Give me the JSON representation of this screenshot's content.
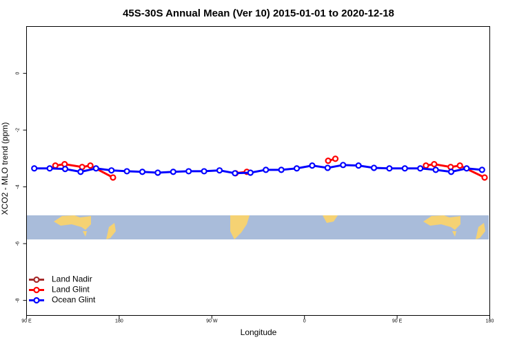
{
  "chart_data": {
    "type": "line",
    "title": "45S-30S Annual Mean (Ver 10)   2015-01-01 to 2020-12-18",
    "x_label": "Longitude",
    "y_label": "XCO2 - MLO trend (ppm)",
    "xlim": [
      90,
      540
    ],
    "ylim": [
      -8.53,
      1.65
    ],
    "xticks": [
      {
        "value": 90,
        "label": "90 E"
      },
      {
        "value": 180,
        "label": "180"
      },
      {
        "value": 270,
        "label": "90 W"
      },
      {
        "value": 360,
        "label": "0"
      },
      {
        "value": 450,
        "label": "90 E"
      },
      {
        "value": 540,
        "label": "180"
      }
    ],
    "yticks": [
      0,
      -2,
      -4,
      -6,
      -8
    ],
    "legend": "bottom-left",
    "series": [
      {
        "name": "Land Nadir",
        "color": "#a52a2a",
        "x": [],
        "values": []
      },
      {
        "name": "Land Glint",
        "color": "#ff0000",
        "x": [
          118,
          127,
          144,
          152,
          174,
          null,
          293,
          304,
          null,
          383,
          390,
          null,
          478,
          486,
          502,
          511,
          535
        ],
        "values": [
          -3.25,
          -3.2,
          -3.3,
          -3.25,
          -3.67,
          null,
          -3.52,
          -3.47,
          null,
          -3.08,
          -3.01,
          null,
          -3.25,
          -3.2,
          -3.3,
          -3.25,
          -3.67
        ]
      },
      {
        "name": "Ocean Glint",
        "color": "#0000ff",
        "x": [
          97.5,
          112.5,
          127.5,
          142.5,
          157.5,
          172.5,
          187.5,
          202.5,
          217.5,
          232.5,
          247.5,
          262.5,
          277.5,
          292.5,
          307.5,
          322.5,
          337.5,
          352.5,
          367.5,
          382.5,
          397.5,
          412.5,
          427.5,
          442.5,
          457.5,
          472.5,
          487.5,
          502.5,
          517.5,
          532.5
        ],
        "values": [
          -3.35,
          -3.35,
          -3.37,
          -3.47,
          -3.35,
          -3.42,
          -3.45,
          -3.47,
          -3.5,
          -3.47,
          -3.45,
          -3.45,
          -3.42,
          -3.52,
          -3.5,
          -3.4,
          -3.4,
          -3.35,
          -3.25,
          -3.33,
          -3.23,
          -3.25,
          -3.33,
          -3.35,
          -3.35,
          -3.35,
          -3.4,
          -3.47,
          -3.35,
          -3.4
        ]
      }
    ]
  }
}
